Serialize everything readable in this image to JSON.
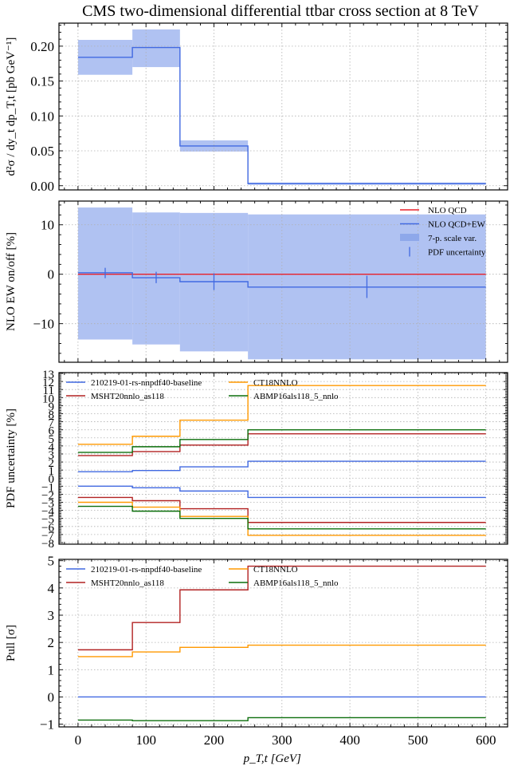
{
  "figure": {
    "title": "CMS two-dimensional differential ttbar cross section at 8 TeV",
    "colors": {
      "band": "#b0c2f2",
      "central": "#4169e1",
      "nlo_qcd": "#e8202a",
      "nnpdf": "#4169e1",
      "msht": "#b22222",
      "ct18": "#ff9900",
      "abmp": "#0b6e0b"
    }
  },
  "chart_data": [
    {
      "type": "line",
      "name": "cross-section",
      "title": "CMS two-dimensional differential ttbar cross section at 8 TeV",
      "xlabel": "p_T,t [GeV]",
      "ylabel": "d²σ / dy_t dp_T,t  [pb GeV⁻¹]",
      "bin_edges": [
        0,
        80,
        150,
        250,
        600
      ],
      "xlim": [
        -28,
        632
      ],
      "ylim": [
        -0.006,
        0.233
      ],
      "yticks": [
        0.0,
        0.05,
        0.1,
        0.15,
        0.2
      ],
      "ytick_labels": [
        "0.00",
        "0.05",
        "0.10",
        "0.15",
        "0.20"
      ],
      "xticks": [
        0,
        100,
        200,
        300,
        400,
        500,
        600
      ],
      "grid": true,
      "series": [
        {
          "name": "NLO QCD+EW central",
          "kind": "step",
          "color_key": "central",
          "values": [
            0.184,
            0.198,
            0.057,
            0.003
          ]
        },
        {
          "name": "7-p. scale var.",
          "kind": "band",
          "color_key": "band",
          "upper": [
            0.209,
            0.224,
            0.065,
            0.0045
          ],
          "lower": [
            0.159,
            0.17,
            0.049,
            0.0015
          ]
        }
      ]
    },
    {
      "type": "line",
      "name": "ew-ratio",
      "xlabel": "",
      "ylabel": "NLO EW on/off [%]",
      "bin_edges": [
        0,
        80,
        150,
        250,
        600
      ],
      "xlim": [
        -28,
        632
      ],
      "ylim": [
        -17.8,
        14.8
      ],
      "yticks": [
        -10,
        0,
        10
      ],
      "ytick_labels": [
        "−10",
        "0",
        "10"
      ],
      "grid": true,
      "legend": {
        "placement": "top-right",
        "entries": [
          {
            "label": "NLO QCD",
            "kind": "line",
            "color_key": "nlo_qcd"
          },
          {
            "label": "NLO QCD+EW",
            "kind": "line",
            "color_key": "central"
          },
          {
            "label": "7-p. scale var.",
            "kind": "patch",
            "color_key": "band"
          },
          {
            "label": "PDF uncertainty",
            "kind": "errorbar",
            "color_key": "central"
          }
        ]
      },
      "series": [
        {
          "name": "7-p. scale var.",
          "kind": "band",
          "color_key": "band",
          "upper": [
            13.5,
            12.5,
            12.4,
            12.1
          ],
          "lower": [
            -13.2,
            -14.2,
            -15.6,
            -17.2
          ]
        },
        {
          "name": "NLO QCD",
          "kind": "step",
          "color_key": "nlo_qcd",
          "values": [
            0,
            0,
            0,
            0
          ]
        },
        {
          "name": "NLO QCD+EW",
          "kind": "step",
          "color_key": "central",
          "values": [
            0.3,
            -0.7,
            -1.5,
            -2.6
          ]
        },
        {
          "name": "PDF uncertainty",
          "kind": "errorbar",
          "color_key": "central",
          "x": [
            40,
            115,
            200,
            425
          ],
          "upper": [
            1.3,
            0.5,
            0.2,
            -0.3
          ],
          "lower": [
            -0.8,
            -1.8,
            -3.2,
            -4.8
          ]
        }
      ]
    },
    {
      "type": "line",
      "name": "pdf-uncertainty",
      "xlabel": "",
      "ylabel": "PDF uncertainty [%]",
      "bin_edges": [
        0,
        80,
        150,
        250,
        600
      ],
      "xlim": [
        -28,
        632
      ],
      "ylim": [
        -8.2,
        13.1
      ],
      "yticks": [
        13,
        12,
        11,
        10,
        9,
        8,
        7,
        6,
        5,
        4,
        3,
        2,
        1,
        0,
        -1,
        -2,
        -3,
        -4,
        -5,
        -6,
        -7,
        -8
      ],
      "ytick_labels": [
        "13",
        "12",
        "11",
        "10",
        "9",
        "8",
        "7",
        "6",
        "5",
        "4",
        "3",
        "2",
        "1",
        "0",
        "−1",
        "−2",
        "−3",
        "−4",
        "−5",
        "−6",
        "−7",
        "−8"
      ],
      "grid": true,
      "legend": {
        "placement": "top-left",
        "columns": 2,
        "entries": [
          {
            "label": "210219-01-rs-nnpdf40-baseline",
            "color_key": "nnpdf"
          },
          {
            "label": "MSHT20nnlo_as118",
            "color_key": "msht"
          },
          {
            "label": "CT18NNLO",
            "color_key": "ct18"
          },
          {
            "label": "ABMP16als118_5_nnlo",
            "color_key": "abmp"
          }
        ]
      },
      "series": [
        {
          "name": "210219-01-rs-nnpdf40-baseline",
          "color_key": "nnpdf",
          "upper": [
            0.8,
            0.95,
            1.4,
            2.1
          ],
          "lower": [
            -1.0,
            -1.2,
            -1.6,
            -2.4
          ]
        },
        {
          "name": "MSHT20nnlo_as118",
          "color_key": "msht",
          "upper": [
            2.8,
            3.3,
            4.1,
            5.5
          ],
          "lower": [
            -2.4,
            -2.8,
            -3.8,
            -5.5
          ]
        },
        {
          "name": "CT18NNLO",
          "color_key": "ct18",
          "upper": [
            4.2,
            5.2,
            7.2,
            11.5
          ],
          "lower": [
            -3.0,
            -3.6,
            -4.75,
            -7.1
          ]
        },
        {
          "name": "ABMP16als118_5_nnlo",
          "color_key": "abmp",
          "upper": [
            3.2,
            3.9,
            4.8,
            6.0
          ],
          "lower": [
            -3.5,
            -4.1,
            -5.0,
            -6.3
          ]
        }
      ]
    },
    {
      "type": "line",
      "name": "pull",
      "xlabel": "p_T,t [GeV]",
      "ylabel": "Pull [σ]",
      "bin_edges": [
        0,
        80,
        150,
        250,
        600
      ],
      "xlim": [
        -28,
        632
      ],
      "ylim": [
        -1.1,
        5.05
      ],
      "yticks": [
        -1,
        0,
        1,
        2,
        3,
        4,
        5
      ],
      "ytick_labels": [
        "−1",
        "0",
        "1",
        "2",
        "3",
        "4",
        "5"
      ],
      "xticks": [
        0,
        100,
        200,
        300,
        400,
        500,
        600
      ],
      "xtick_labels": [
        "0",
        "100",
        "200",
        "300",
        "400",
        "500",
        "600"
      ],
      "grid": true,
      "legend": {
        "placement": "top-left",
        "columns": 2,
        "entries": [
          {
            "label": "210219-01-rs-nnpdf40-baseline",
            "color_key": "nnpdf"
          },
          {
            "label": "MSHT20nnlo_as118",
            "color_key": "msht"
          },
          {
            "label": "CT18NNLO",
            "color_key": "ct18"
          },
          {
            "label": "ABMP16als118_5_nnlo",
            "color_key": "abmp"
          }
        ]
      },
      "series": [
        {
          "name": "210219-01-rs-nnpdf40-baseline",
          "color_key": "nnpdf",
          "values": [
            0,
            0,
            0,
            0
          ]
        },
        {
          "name": "MSHT20nnlo_as118",
          "color_key": "msht",
          "values": [
            1.73,
            2.73,
            3.93,
            4.8
          ]
        },
        {
          "name": "CT18NNLO",
          "color_key": "ct18",
          "values": [
            1.48,
            1.65,
            1.82,
            1.9
          ]
        },
        {
          "name": "ABMP16als118_5_nnlo",
          "color_key": "abmp",
          "values": [
            -0.85,
            -0.87,
            -0.87,
            -0.76
          ]
        }
      ]
    }
  ]
}
